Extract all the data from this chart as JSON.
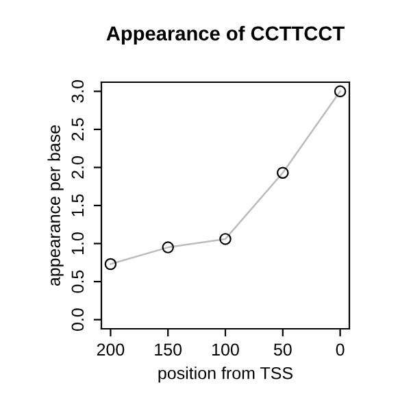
{
  "chart_data": {
    "type": "line",
    "title": "Appearance of CCTTCCT",
    "xlabel": "position from TSS",
    "ylabel": "appearance per base",
    "x": [
      200,
      150,
      100,
      50,
      0
    ],
    "series": [
      {
        "color": "#bbbbbb",
        "values": [
          0.73,
          0.95,
          1.06,
          1.93,
          3.0
        ]
      }
    ],
    "marker": "circle",
    "line_style": "solid",
    "xlim": [
      208,
      -8
    ],
    "ylim": [
      -0.12,
      3.12
    ],
    "xticks": [
      200,
      150,
      100,
      50,
      0
    ],
    "yticks": [
      {
        "value": 0,
        "label": "0.0"
      },
      0.5,
      {
        "value": 1,
        "label": "1.0"
      },
      1.5,
      {
        "value": 2,
        "label": "2.0"
      },
      2.5,
      {
        "value": 3,
        "label": "3.0"
      }
    ],
    "grid": false,
    "legend": false
  }
}
